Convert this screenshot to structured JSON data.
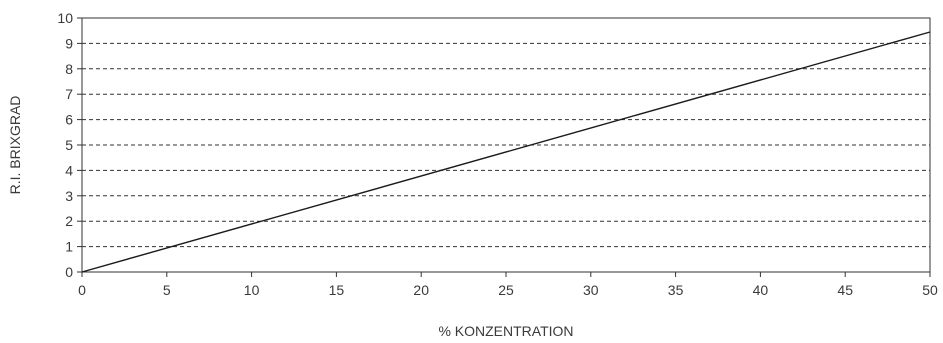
{
  "chart_data": {
    "type": "line",
    "title": "",
    "xlabel": "% KONZENTRATION",
    "ylabel": "R.I. BRIXGRAD",
    "xlim": [
      0,
      50
    ],
    "ylim": [
      0,
      10
    ],
    "xticks": [
      0,
      5,
      10,
      15,
      20,
      25,
      30,
      35,
      40,
      45,
      50
    ],
    "yticks": [
      0,
      1,
      2,
      3,
      4,
      5,
      6,
      7,
      8,
      9,
      10
    ],
    "grid": "horizontal dashed",
    "legend": "none",
    "series": [
      {
        "x": [
          0,
          50
        ],
        "y": [
          0,
          9.45
        ]
      }
    ],
    "colors": {
      "line": "#1a1a1a",
      "grid": "#333333",
      "text": "#3a3a3a"
    }
  }
}
